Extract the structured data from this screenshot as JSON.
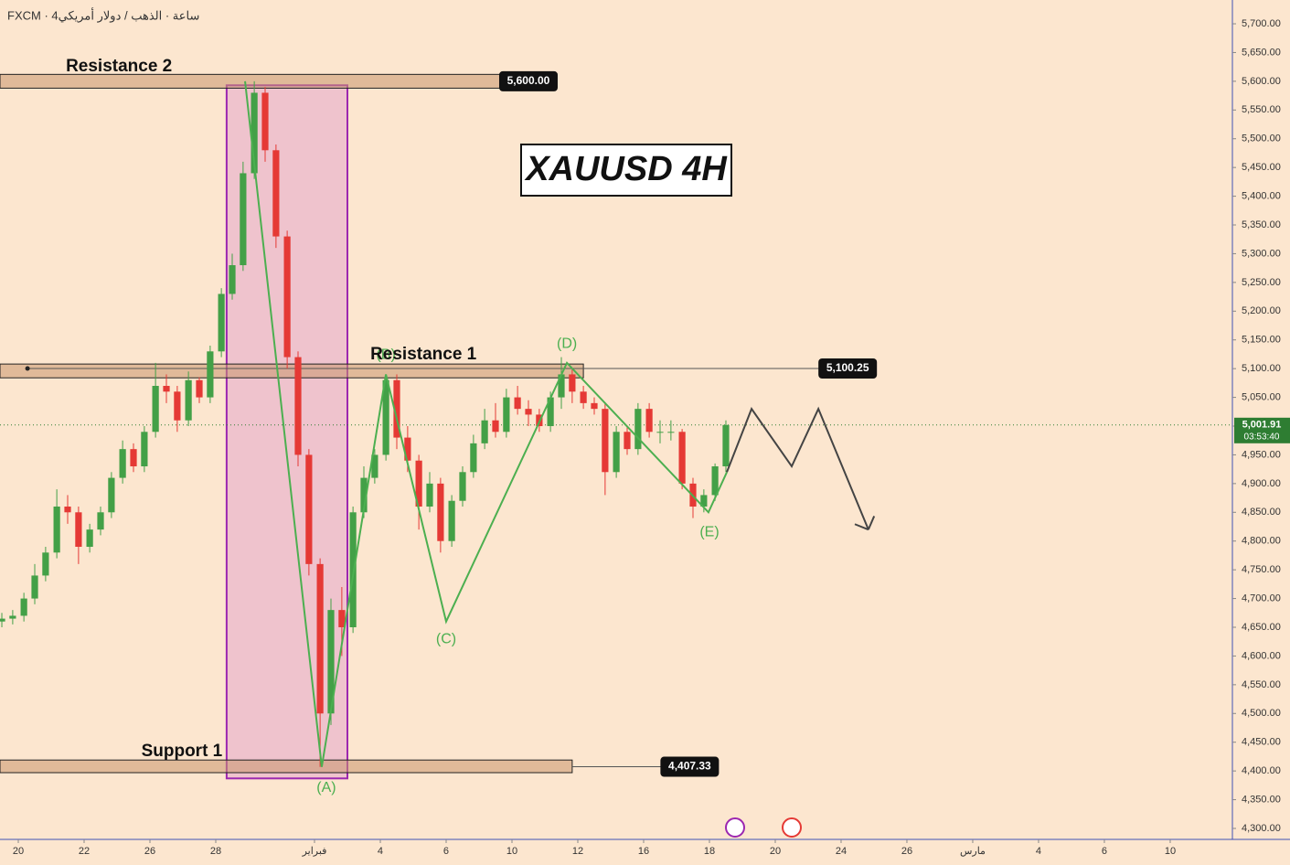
{
  "header": "FXCM · 4ساعة · الذهب / دولار أمريكي",
  "chart_data": {
    "type": "candlestick",
    "title": "XAUUSD 4H",
    "up_color": "#43a047",
    "down_color": "#e53935",
    "x": [
      -0.5,
      -0.17,
      0.17,
      0.5,
      0.83,
      1.17,
      1.5,
      1.83,
      2.17,
      2.5,
      2.83,
      3.17,
      3.5,
      3.83,
      4.17,
      4.5,
      4.83,
      5.17,
      5.5,
      5.83,
      6.17,
      6.5,
      6.83,
      7.17,
      7.5,
      7.83,
      8.17,
      8.5,
      8.83,
      9.17,
      9.5,
      9.83,
      10.17,
      10.5,
      10.83,
      11.17,
      11.5,
      11.83,
      12.17,
      12.5,
      12.83,
      13.17,
      13.5,
      13.83,
      14.17,
      14.5,
      14.83,
      15.17,
      15.5,
      15.83,
      16.17,
      16.5,
      16.83,
      17.17,
      17.5,
      17.83,
      18.17,
      18.5,
      18.83,
      19.17,
      19.5,
      19.83,
      20.17,
      20.5,
      20.83,
      21.17,
      21.5
    ],
    "open": [
      4660,
      4665,
      4670,
      4700,
      4740,
      4780,
      4860,
      4850,
      4790,
      4820,
      4850,
      4910,
      4960,
      4930,
      4990,
      5070,
      5060,
      5010,
      5080,
      5050,
      5130,
      5230,
      5280,
      5440,
      5580,
      5480,
      5330,
      5120,
      4950,
      4760,
      4500,
      4680,
      4650,
      4850,
      4910,
      4950,
      5080,
      4980,
      4940,
      4860,
      4900,
      4800,
      4870,
      4920,
      4970,
      5010,
      4990,
      5050,
      5030,
      5020,
      5000,
      5050,
      5090,
      5060,
      5040,
      5030,
      4920,
      4990,
      4960,
      5030,
      4990,
      4990,
      4990,
      4900,
      4860,
      4880,
      4930
    ],
    "high": [
      4675,
      4680,
      4710,
      4760,
      4790,
      4890,
      4880,
      4860,
      4830,
      4860,
      4920,
      4975,
      4970,
      5000,
      5110,
      5090,
      5070,
      5095,
      5085,
      5140,
      5240,
      5300,
      5460,
      5600,
      5590,
      5490,
      5340,
      5130,
      4960,
      4770,
      4700,
      4720,
      4860,
      4930,
      4960,
      5090,
      5090,
      5000,
      4950,
      4920,
      4910,
      4880,
      4930,
      4985,
      5030,
      5040,
      5065,
      5070,
      5045,
      5030,
      5060,
      5120,
      5100,
      5070,
      5050,
      5040,
      5000,
      5000,
      5040,
      5040,
      5010,
      5010,
      4995,
      4910,
      4890,
      4935,
      5010
    ],
    "low": [
      4650,
      4655,
      4660,
      4690,
      4730,
      4770,
      4830,
      4760,
      4780,
      4810,
      4840,
      4900,
      4920,
      4920,
      4980,
      5040,
      4990,
      5000,
      5040,
      5040,
      5120,
      5220,
      5270,
      5430,
      5460,
      5310,
      5100,
      4930,
      4740,
      4407,
      4480,
      4600,
      4640,
      4840,
      4900,
      4940,
      4960,
      4920,
      4820,
      4850,
      4780,
      4790,
      4860,
      4910,
      4960,
      4980,
      4980,
      5020,
      5000,
      4990,
      4990,
      5030,
      5040,
      5030,
      5020,
      4880,
      4910,
      4950,
      4950,
      4980,
      4970,
      4975,
      4890,
      4840,
      4850,
      4870,
      4920
    ],
    "close": [
      4665,
      4670,
      4700,
      4740,
      4780,
      4860,
      4850,
      4790,
      4820,
      4850,
      4910,
      4960,
      4930,
      4990,
      5070,
      5060,
      5010,
      5080,
      5050,
      5130,
      5230,
      5280,
      5440,
      5580,
      5480,
      5330,
      5120,
      4950,
      4760,
      4500,
      4680,
      4650,
      4850,
      4910,
      4950,
      5080,
      4980,
      4940,
      4860,
      4900,
      4800,
      4870,
      4920,
      4970,
      5010,
      4990,
      5050,
      5030,
      5020,
      5000,
      5050,
      5090,
      5060,
      5040,
      5030,
      4920,
      4990,
      4960,
      5030,
      4990,
      4990,
      4990,
      4900,
      4860,
      4880,
      4930,
      5002
    ],
    "xlim": [
      -0.556,
      36.89
    ],
    "ylim": [
      4280.9,
      5741.4
    ],
    "xticks": [
      {
        "value": 0,
        "label": "20"
      },
      {
        "value": 2,
        "label": "22"
      },
      {
        "value": 4,
        "label": "26"
      },
      {
        "value": 6,
        "label": "28"
      },
      {
        "value": 9,
        "label": "فبراير"
      },
      {
        "value": 11,
        "label": "4"
      },
      {
        "value": 13,
        "label": "6"
      },
      {
        "value": 15,
        "label": "10"
      },
      {
        "value": 17,
        "label": "12"
      },
      {
        "value": 19,
        "label": "16"
      },
      {
        "value": 21,
        "label": "18"
      },
      {
        "value": 23,
        "label": "20"
      },
      {
        "value": 25,
        "label": "24"
      },
      {
        "value": 27,
        "label": "26"
      },
      {
        "value": 29,
        "label": "مارس"
      },
      {
        "value": 31,
        "label": "4"
      },
      {
        "value": 33,
        "label": "6"
      },
      {
        "value": 35,
        "label": "10"
      }
    ],
    "yticks": [
      {
        "value": 4300,
        "label": "4,300.00"
      },
      {
        "value": 4350,
        "label": "4,350.00"
      },
      {
        "value": 4400,
        "label": "4,400.00"
      },
      {
        "value": 4450,
        "label": "4,450.00"
      },
      {
        "value": 4500,
        "label": "4,500.00"
      },
      {
        "value": 4550,
        "label": "4,550.00"
      },
      {
        "value": 4600,
        "label": "4,600.00"
      },
      {
        "value": 4650,
        "label": "4,650.00"
      },
      {
        "value": 4700,
        "label": "4,700.00"
      },
      {
        "value": 4750,
        "label": "4,750.00"
      },
      {
        "value": 4800,
        "label": "4,800.00"
      },
      {
        "value": 4850,
        "label": "4,850.00"
      },
      {
        "value": 4900,
        "label": "4,900.00"
      },
      {
        "value": 4950,
        "label": "4,950.00"
      },
      {
        "value": 5000,
        "label": "5,000.00"
      },
      {
        "value": 5050,
        "label": "5,050.00"
      },
      {
        "value": 5100,
        "label": "5,100.00"
      },
      {
        "value": 5150,
        "label": "5,150.00"
      },
      {
        "value": 5200,
        "label": "5,200.00"
      },
      {
        "value": 5250,
        "label": "5,250.00"
      },
      {
        "value": 5300,
        "label": "5,300.00"
      },
      {
        "value": 5350,
        "label": "5,350.00"
      },
      {
        "value": 5400,
        "label": "5,400.00"
      },
      {
        "value": 5450,
        "label": "5,450.00"
      },
      {
        "value": 5500,
        "label": "5,500.00"
      },
      {
        "value": 5550,
        "label": "5,550.00"
      },
      {
        "value": 5600,
        "label": "5,600.00"
      },
      {
        "value": 5650,
        "label": "5,650.00"
      },
      {
        "value": 5700,
        "label": "5,700.00"
      }
    ],
    "zones": [
      {
        "label": "Resistance 2",
        "low": 5588,
        "high": 5612,
        "x_start": -0.556,
        "x_end": 15.55,
        "label_x": 3.06,
        "label_y": 5625
      },
      {
        "label": "Resistance 1",
        "low": 5084,
        "high": 5108,
        "x_start": -0.556,
        "x_end": 17.17,
        "label_x": 12.31,
        "label_y": 5124
      },
      {
        "label": "Support 1",
        "low": 4397,
        "high": 4419,
        "x_start": -0.556,
        "x_end": 16.83,
        "label_x": 4.97,
        "label_y": 4434
      }
    ],
    "highlight": {
      "x": [
        6.33,
        10
      ],
      "y": [
        4387,
        5593
      ]
    },
    "price_labels": [
      {
        "value": 5600,
        "label": "5,600.00",
        "x": 15.5,
        "line_from": 15.5
      },
      {
        "value": 5100.25,
        "label": "5,100.25",
        "x": 25.2,
        "line_from": 0.28
      },
      {
        "value": 4407.33,
        "label": "4,407.33",
        "x": 20.4,
        "line_from": 16.83
      }
    ],
    "last_price": {
      "value": 5001.91,
      "label": "5,001.91",
      "countdown": "03:53:40"
    },
    "wave": {
      "color": "#4caf50",
      "points": [
        {
          "x": 6.89,
          "y": 5600
        },
        {
          "x": 9.22,
          "y": 4407
        },
        {
          "x": 11.17,
          "y": 5090
        },
        {
          "x": 13,
          "y": 4660
        },
        {
          "x": 16.67,
          "y": 5110
        },
        {
          "x": 20.97,
          "y": 4850
        },
        {
          "x": 21.53,
          "y": 4920
        }
      ],
      "labels": [
        {
          "text": "(A)",
          "x": 9.36,
          "y": 4370
        },
        {
          "text": "(B)",
          "x": 11.17,
          "y": 5124
        },
        {
          "text": "(C)",
          "x": 13,
          "y": 4629
        },
        {
          "text": "(D)",
          "x": 16.67,
          "y": 5143
        },
        {
          "text": "(E)",
          "x": 21,
          "y": 4815
        }
      ]
    },
    "projection": {
      "color": "#444444",
      "points": [
        {
          "x": 21.53,
          "y": 4920
        },
        {
          "x": 22.28,
          "y": 5030
        },
        {
          "x": 23.5,
          "y": 4930
        },
        {
          "x": 24.31,
          "y": 5030
        },
        {
          "x": 25.83,
          "y": 4820
        }
      ]
    }
  }
}
